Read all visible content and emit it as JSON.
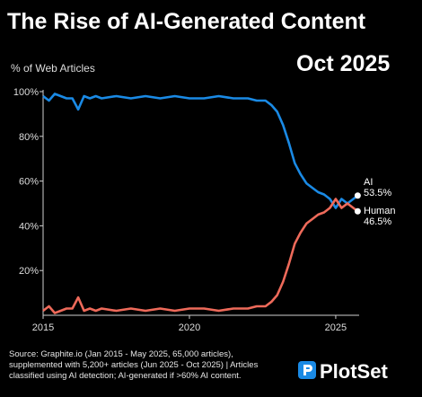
{
  "title": "The Rise of AI-Generated Content",
  "date_label": "Oct 2025",
  "source_lines": [
    "Source: Graphite.io (Jan 2015 - May 2025, 65,000 articles),",
    "supplemented with 5,200+ articles (Jun 2025 - Oct 2025) | Articles",
    "classified using AI detection; AI-generated if >60% AI content."
  ],
  "brand": "PlotSet",
  "colors": {
    "ai": "#1a8ae5",
    "human": "#ee6a5a",
    "background": "#000000",
    "brand_icon": "#1a8ae5"
  },
  "chart_data": {
    "type": "line",
    "ylabel": "% of Web Articles",
    "xlim": [
      2015,
      2025.8
    ],
    "ylim": [
      0,
      100
    ],
    "y_ticks": [
      20,
      40,
      60,
      80,
      100
    ],
    "y_tick_labels": [
      "20%",
      "40%",
      "60%",
      "80%",
      "100%"
    ],
    "x_ticks": [
      2015,
      2020,
      2025
    ],
    "x_tick_labels": [
      "2015",
      "2020",
      "2025"
    ],
    "grid": false,
    "series": [
      {
        "name": "AI",
        "end_label": "AI",
        "end_value_label": "53.5%",
        "x": [
          2015,
          2015.2,
          2015.4,
          2015.6,
          2015.8,
          2016,
          2016.2,
          2016.4,
          2016.6,
          2016.8,
          2017,
          2017.5,
          2018,
          2018.5,
          2019,
          2019.5,
          2020,
          2020.5,
          2021,
          2021.5,
          2022,
          2022.3,
          2022.6,
          2022.8,
          2023,
          2023.2,
          2023.4,
          2023.6,
          2023.8,
          2024,
          2024.2,
          2024.4,
          2024.6,
          2024.8,
          2025,
          2025.2,
          2025.4,
          2025.6,
          2025.75
        ],
        "values": [
          98,
          96,
          99,
          98,
          97,
          97,
          92,
          98,
          97,
          98,
          97,
          98,
          97,
          98,
          97,
          98,
          97,
          97,
          98,
          97,
          97,
          96,
          96,
          94,
          91,
          85,
          77,
          68,
          63,
          59,
          57,
          55,
          54,
          52,
          48,
          52,
          50,
          52,
          53.5
        ]
      },
      {
        "name": "Human",
        "end_label": "Human",
        "end_value_label": "46.5%",
        "x": [
          2015,
          2015.2,
          2015.4,
          2015.6,
          2015.8,
          2016,
          2016.2,
          2016.4,
          2016.6,
          2016.8,
          2017,
          2017.5,
          2018,
          2018.5,
          2019,
          2019.5,
          2020,
          2020.5,
          2021,
          2021.5,
          2022,
          2022.3,
          2022.6,
          2022.8,
          2023,
          2023.2,
          2023.4,
          2023.6,
          2023.8,
          2024,
          2024.2,
          2024.4,
          2024.6,
          2024.8,
          2025,
          2025.2,
          2025.4,
          2025.6,
          2025.75
        ],
        "values": [
          2,
          4,
          1,
          2,
          3,
          3,
          8,
          2,
          3,
          2,
          3,
          2,
          3,
          2,
          3,
          2,
          3,
          3,
          2,
          3,
          3,
          4,
          4,
          6,
          9,
          15,
          23,
          32,
          37,
          41,
          43,
          45,
          46,
          48,
          52,
          48,
          50,
          48,
          46.5
        ]
      }
    ]
  }
}
